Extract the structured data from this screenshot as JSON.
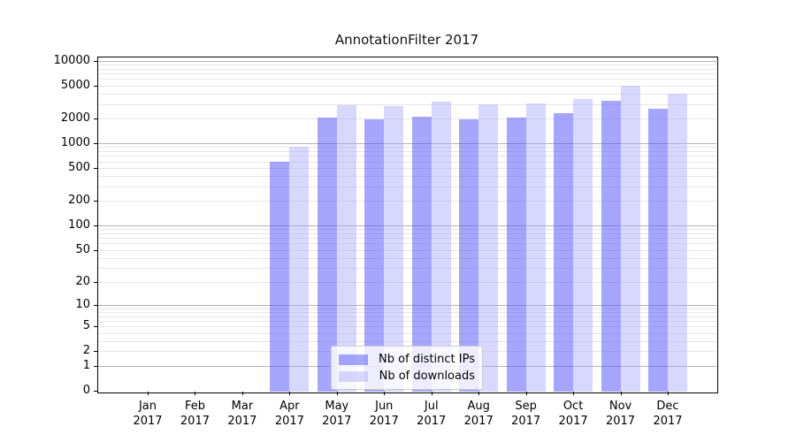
{
  "title": "AnnotationFilter 2017",
  "chart_data": {
    "type": "bar",
    "title": "AnnotationFilter 2017",
    "scale": "symlog",
    "grid": "both",
    "legend_position": "lower center",
    "categories": [
      "Jan 2017",
      "Feb 2017",
      "Mar 2017",
      "Apr 2017",
      "May 2017",
      "Jun 2017",
      "Jul 2017",
      "Aug 2017",
      "Sep 2017",
      "Oct 2017",
      "Nov 2017",
      "Dec 2017"
    ],
    "x_labels": [
      {
        "month": "Jan",
        "year": "2017"
      },
      {
        "month": "Feb",
        "year": "2017"
      },
      {
        "month": "Mar",
        "year": "2017"
      },
      {
        "month": "Apr",
        "year": "2017"
      },
      {
        "month": "May",
        "year": "2017"
      },
      {
        "month": "Jun",
        "year": "2017"
      },
      {
        "month": "Jul",
        "year": "2017"
      },
      {
        "month": "Aug",
        "year": "2017"
      },
      {
        "month": "Sep",
        "year": "2017"
      },
      {
        "month": "Oct",
        "year": "2017"
      },
      {
        "month": "Nov",
        "year": "2017"
      },
      {
        "month": "Dec",
        "year": "2017"
      }
    ],
    "y_ticks": [
      0,
      1,
      2,
      5,
      10,
      20,
      50,
      100,
      200,
      500,
      1000,
      2000,
      5000,
      10000
    ],
    "ylim": [
      0,
      10000
    ],
    "series": [
      {
        "name": "Nb of distinct IPs",
        "color": "#5555ff",
        "fill": "rgba(85,85,255,0.52)",
        "values": [
          0,
          0,
          0,
          600,
          2050,
          1950,
          2100,
          1950,
          2050,
          2300,
          3250,
          2600
        ]
      },
      {
        "name": "Nb of downloads",
        "color": "#aaaaff",
        "fill": "rgba(170,170,255,0.46)",
        "values": [
          0,
          0,
          0,
          900,
          2900,
          2850,
          3200,
          2950,
          3050,
          3450,
          5000,
          4000
        ]
      }
    ],
    "grid_major_color": "#b3b3b3",
    "grid_minor_color": "#e6e6e6"
  }
}
